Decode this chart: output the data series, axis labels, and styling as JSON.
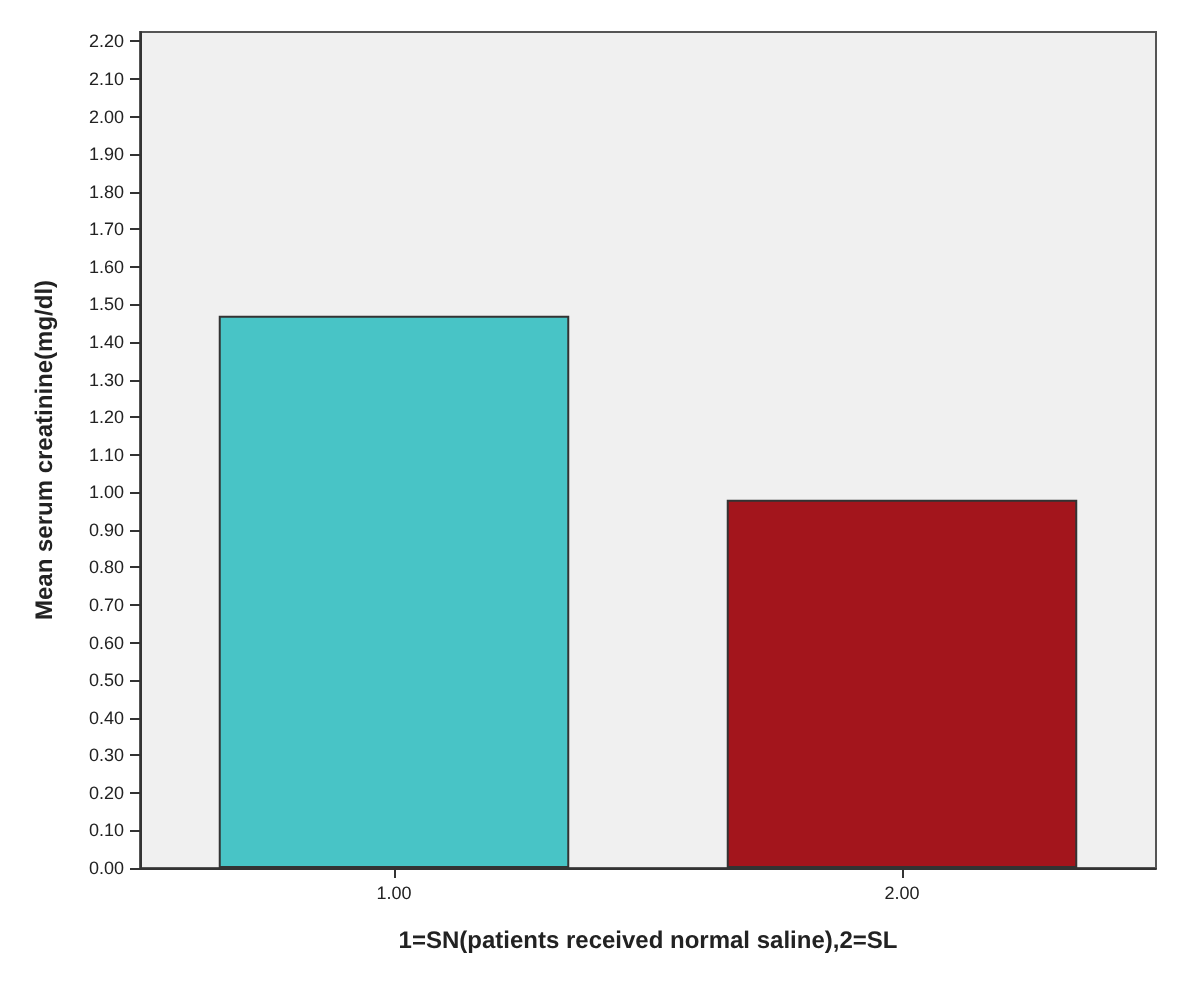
{
  "chart_data": {
    "type": "bar",
    "xlabel": "1=SN(patients received normal saline),2=SL",
    "ylabel": "Mean serum creatinine(mg/dl)",
    "categories": [
      "1.00",
      "2.00"
    ],
    "values": [
      1.47,
      0.98
    ],
    "colors": [
      "#48c4c6",
      "#a3151c"
    ],
    "ylim": [
      0,
      2.225
    ],
    "yticks": [
      {
        "value": 0,
        "label": "0.00"
      },
      {
        "value": 0.1,
        "label": "0.10"
      },
      {
        "value": 0.2,
        "label": "0.20"
      },
      {
        "value": 0.3,
        "label": "0.30"
      },
      {
        "value": 0.4,
        "label": "0.40"
      },
      {
        "value": 0.5,
        "label": "0.50"
      },
      {
        "value": 0.6,
        "label": "0.60"
      },
      {
        "value": 0.7,
        "label": "0.70"
      },
      {
        "value": 0.8,
        "label": "0.80"
      },
      {
        "value": 0.9,
        "label": "0.90"
      },
      {
        "value": 1,
        "label": "1.00"
      },
      {
        "value": 1.1,
        "label": "1.10"
      },
      {
        "value": 1.2,
        "label": "1.20"
      },
      {
        "value": 1.3,
        "label": "1.30"
      },
      {
        "value": 1.4,
        "label": "1.40"
      },
      {
        "value": 1.5,
        "label": "1.50"
      },
      {
        "value": 1.6,
        "label": "1.60"
      },
      {
        "value": 1.7,
        "label": "1.70"
      },
      {
        "value": 1.8,
        "label": "1.80"
      },
      {
        "value": 1.9,
        "label": "1.90"
      },
      {
        "value": 2,
        "label": "2.00"
      },
      {
        "value": 2.1,
        "label": "2.10"
      },
      {
        "value": 2.2,
        "label": "2.20"
      }
    ],
    "grid": false
  }
}
